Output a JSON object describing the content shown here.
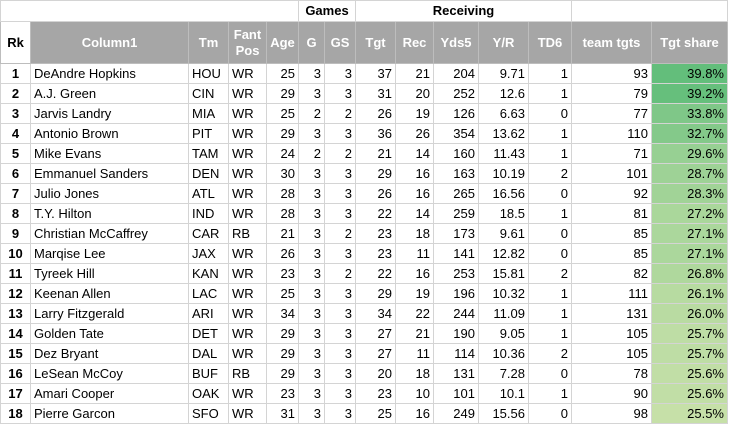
{
  "groups": {
    "games": "Games",
    "receiving": "Receiving"
  },
  "headers": [
    "Rk",
    "Column1",
    "Tm",
    "Fant Pos",
    "Age",
    "G",
    "GS",
    "Tgt",
    "Rec",
    "Yds5",
    "Y/R",
    "TD6",
    "team tgts",
    "Tgt share"
  ],
  "colors": {
    "header_bg": "#a6a6a6",
    "share_high": "#63be7b",
    "share_low": "#c6e0a8"
  },
  "rows": [
    [
      "1",
      "DeAndre Hopkins",
      "HOU",
      "WR",
      "25",
      "3",
      "3",
      "37",
      "21",
      "204",
      "9.71",
      "1",
      "93",
      "39.8%"
    ],
    [
      "2",
      "A.J. Green",
      "CIN",
      "WR",
      "29",
      "3",
      "3",
      "31",
      "20",
      "252",
      "12.6",
      "1",
      "79",
      "39.2%"
    ],
    [
      "3",
      "Jarvis Landry",
      "MIA",
      "WR",
      "25",
      "2",
      "2",
      "26",
      "19",
      "126",
      "6.63",
      "0",
      "77",
      "33.8%"
    ],
    [
      "4",
      "Antonio Brown",
      "PIT",
      "WR",
      "29",
      "3",
      "3",
      "36",
      "26",
      "354",
      "13.62",
      "1",
      "110",
      "32.7%"
    ],
    [
      "5",
      "Mike Evans",
      "TAM",
      "WR",
      "24",
      "2",
      "2",
      "21",
      "14",
      "160",
      "11.43",
      "1",
      "71",
      "29.6%"
    ],
    [
      "6",
      "Emmanuel Sanders",
      "DEN",
      "WR",
      "30",
      "3",
      "3",
      "29",
      "16",
      "163",
      "10.19",
      "2",
      "101",
      "28.7%"
    ],
    [
      "7",
      "Julio Jones",
      "ATL",
      "WR",
      "28",
      "3",
      "3",
      "26",
      "16",
      "265",
      "16.56",
      "0",
      "92",
      "28.3%"
    ],
    [
      "8",
      "T.Y. Hilton",
      "IND",
      "WR",
      "28",
      "3",
      "3",
      "22",
      "14",
      "259",
      "18.5",
      "1",
      "81",
      "27.2%"
    ],
    [
      "9",
      "Christian McCaffrey",
      "CAR",
      "RB",
      "21",
      "3",
      "2",
      "23",
      "18",
      "173",
      "9.61",
      "0",
      "85",
      "27.1%"
    ],
    [
      "10",
      "Marqise Lee",
      "JAX",
      "WR",
      "26",
      "3",
      "3",
      "23",
      "11",
      "141",
      "12.82",
      "0",
      "85",
      "27.1%"
    ],
    [
      "11",
      "Tyreek Hill",
      "KAN",
      "WR",
      "23",
      "3",
      "2",
      "22",
      "16",
      "253",
      "15.81",
      "2",
      "82",
      "26.8%"
    ],
    [
      "12",
      "Keenan Allen",
      "LAC",
      "WR",
      "25",
      "3",
      "3",
      "29",
      "19",
      "196",
      "10.32",
      "1",
      "111",
      "26.1%"
    ],
    [
      "13",
      "Larry Fitzgerald",
      "ARI",
      "WR",
      "34",
      "3",
      "3",
      "34",
      "22",
      "244",
      "11.09",
      "1",
      "131",
      "26.0%"
    ],
    [
      "14",
      "Golden Tate",
      "DET",
      "WR",
      "29",
      "3",
      "3",
      "27",
      "21",
      "190",
      "9.05",
      "1",
      "105",
      "25.7%"
    ],
    [
      "15",
      "Dez Bryant",
      "DAL",
      "WR",
      "29",
      "3",
      "3",
      "27",
      "11",
      "114",
      "10.36",
      "2",
      "105",
      "25.7%"
    ],
    [
      "16",
      "LeSean McCoy",
      "BUF",
      "RB",
      "29",
      "3",
      "3",
      "20",
      "18",
      "131",
      "7.28",
      "0",
      "78",
      "25.6%"
    ],
    [
      "17",
      "Amari Cooper",
      "OAK",
      "WR",
      "23",
      "3",
      "3",
      "23",
      "10",
      "101",
      "10.1",
      "1",
      "90",
      "25.6%"
    ],
    [
      "18",
      "Pierre Garcon",
      "SFO",
      "WR",
      "31",
      "3",
      "3",
      "25",
      "16",
      "249",
      "15.56",
      "0",
      "98",
      "25.5%"
    ]
  ]
}
